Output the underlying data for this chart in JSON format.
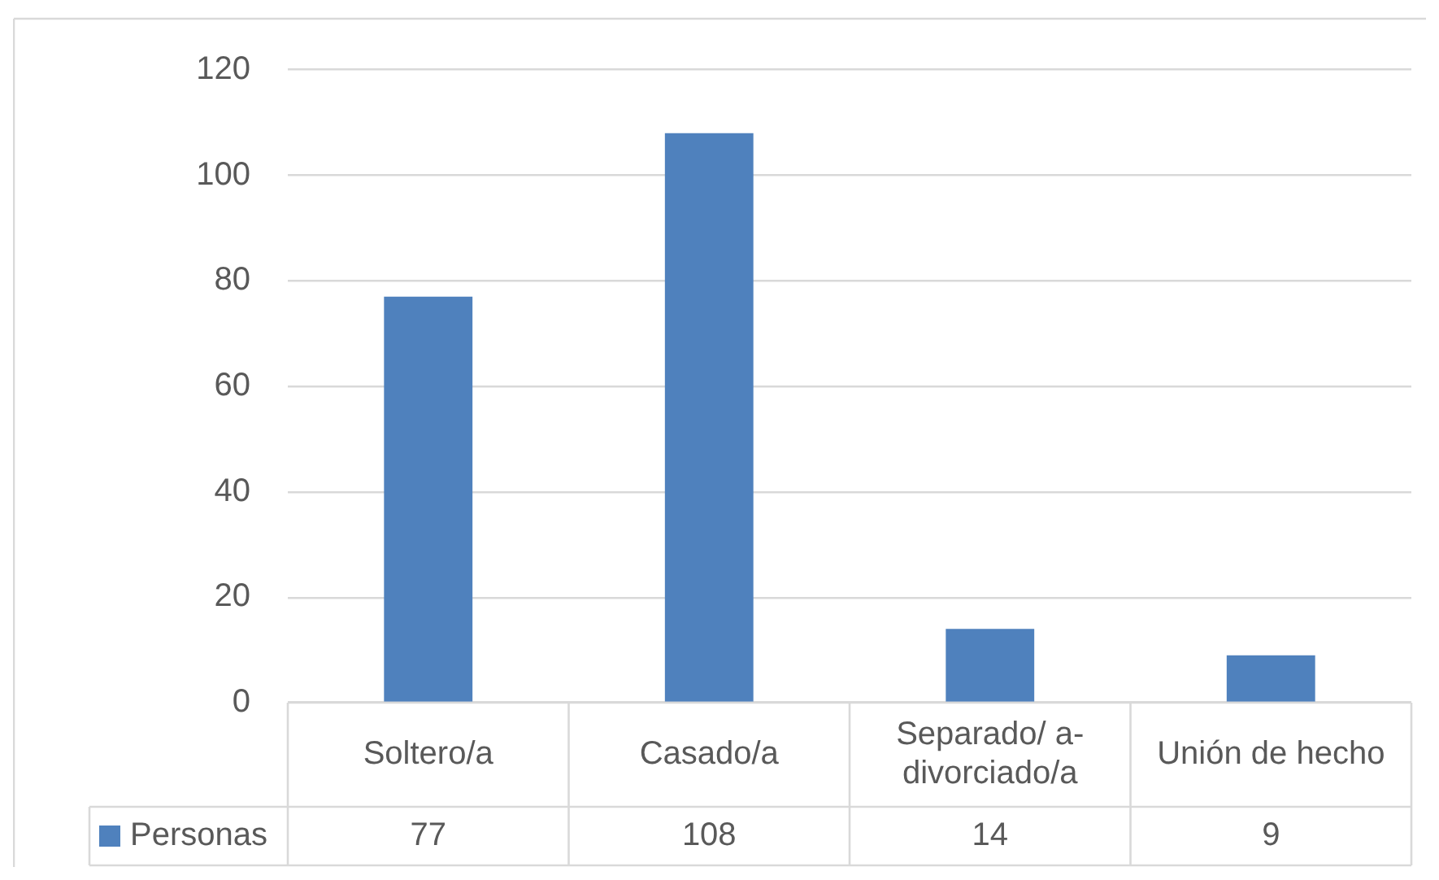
{
  "chart_data": {
    "type": "bar",
    "categories": [
      "Soltero/a",
      "Casado/a",
      "Separado/ a-divorciado/a",
      "Unión de hecho"
    ],
    "series": [
      {
        "name": "Personas",
        "color": "#4f81bd",
        "values": [
          77,
          108,
          14,
          9
        ]
      }
    ],
    "ylim": [
      0,
      120
    ],
    "yticks": [
      0,
      20,
      40,
      60,
      80,
      100,
      120
    ],
    "grid": "y",
    "legend": "bottom",
    "data_labels": true
  }
}
